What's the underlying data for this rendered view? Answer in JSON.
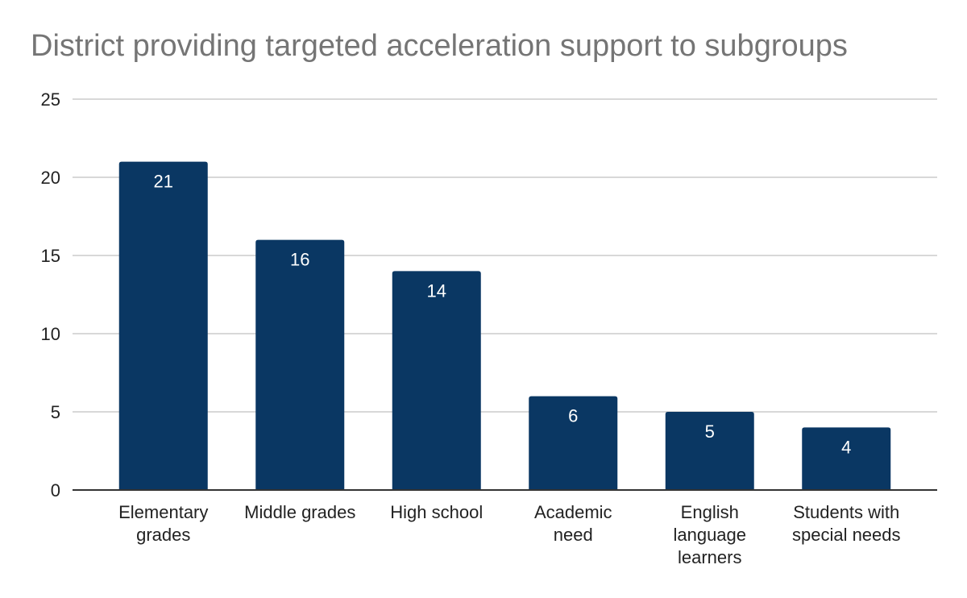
{
  "chart_data": {
    "type": "bar",
    "title": "District providing targeted acceleration support to subgroups",
    "categories": [
      "Elementary grades",
      "Middle grades",
      "High school",
      "Academic need",
      "English language learners",
      "Students with special needs"
    ],
    "category_label_lines": [
      [
        "Elementary",
        "grades"
      ],
      [
        "Middle grades"
      ],
      [
        "High school"
      ],
      [
        "Academic",
        "need"
      ],
      [
        "English",
        "language",
        "learners"
      ],
      [
        "Students with",
        "special needs"
      ]
    ],
    "values": [
      21,
      16,
      14,
      6,
      5,
      4
    ],
    "ylim": [
      0,
      25
    ],
    "yticks": [
      0,
      5,
      10,
      15,
      20,
      25
    ],
    "xlabel": "",
    "ylabel": "",
    "grid": true,
    "data_labels": true,
    "colors": {
      "bar": "#0a3763",
      "grid": "#cccccc",
      "axis": "#333333",
      "title": "#757575"
    }
  }
}
